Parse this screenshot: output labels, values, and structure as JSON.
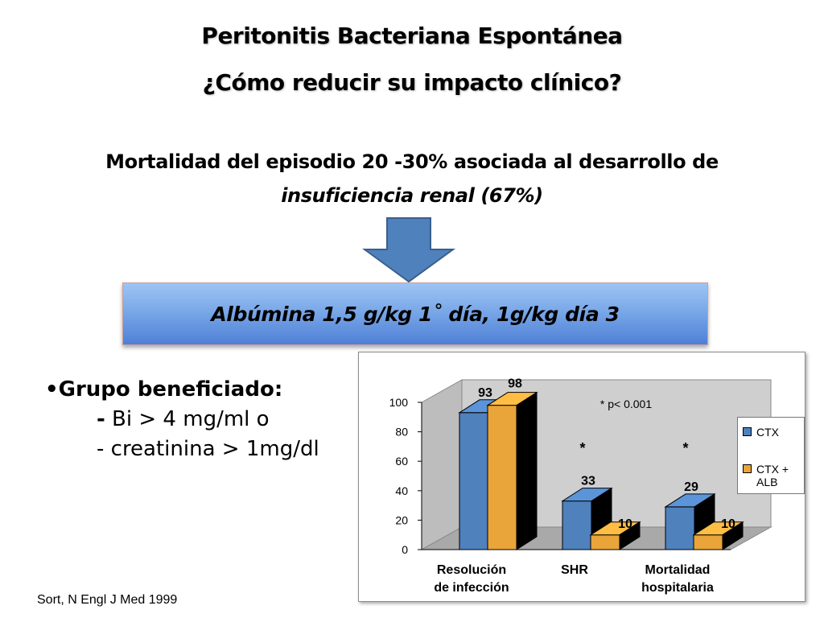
{
  "slide": {
    "title_line1": "Peritonitis Bacteriana Espontánea",
    "title_line2": "¿Cómo reducir su impacto clínico?",
    "subtitle_line1": "Mortalidad del episodio 20 -30% asociada al desarrollo de",
    "subtitle_line2": "insuficiencia renal (67%)",
    "dose_text": "Albúmina 1,5 g/kg 1˚ día, 1g/kg día 3",
    "group_title": "•Grupo beneficiado:",
    "group_dash": "-",
    "group_item1": " Bi > 4 mg/ml  o",
    "group_item2": "- creatinina  > 1mg/dl",
    "source": "Sort, N Engl J Med 1999",
    "colors": {
      "arrow_fill": "#4f81bd",
      "box_top": "#9dc4f4",
      "box_bottom": "#4f80d6"
    }
  },
  "chart_data": {
    "type": "bar",
    "categories": [
      "Resolución de infección",
      "SHR",
      "Mortalidad hospitalaria"
    ],
    "category_lines": [
      [
        "Resolución",
        "de infección"
      ],
      [
        "SHR"
      ],
      [
        "Mortalidad",
        "hospitalaria"
      ]
    ],
    "series": [
      {
        "name": "CTX",
        "values": [
          93,
          33,
          29
        ],
        "labels": [
          "93",
          "33",
          "29"
        ],
        "color": "#4f81bd"
      },
      {
        "name": "CTX + ALB",
        "values": [
          98,
          10,
          10
        ],
        "labels": [
          "98",
          "10",
          "10"
        ],
        "color": "#e9a53a"
      }
    ],
    "ylim": [
      0,
      100
    ],
    "yticks": [
      0,
      20,
      40,
      60,
      80,
      100
    ],
    "ytick_labels": [
      "0",
      "20",
      "40",
      "60",
      "80",
      "100"
    ],
    "annotation": "* p< 0.001",
    "significance_markers": [
      {
        "category": "SHR",
        "label": "*"
      },
      {
        "category": "Mortalidad hospitalaria",
        "label": "*"
      }
    ],
    "grid": false,
    "legend": {
      "position": "right",
      "entries": [
        "CTX",
        "CTX + ALB"
      ]
    },
    "colors": {
      "wall": "#cfcfcf",
      "floor": "#a9a9a9",
      "bar_side": "#000000"
    }
  }
}
